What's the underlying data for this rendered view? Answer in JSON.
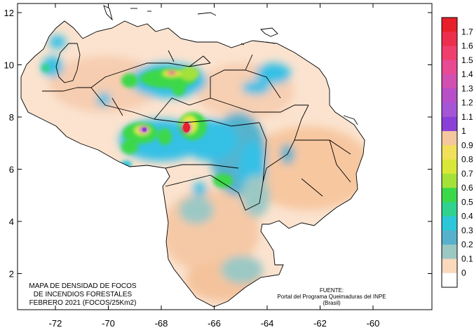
{
  "map": {
    "title_lines": [
      "MAPA DE DENSIDAD DE FOCOS",
      "DE INCENDIOS FORESTALES",
      "FEBRERO 2021 (FOCOS/25Km2)"
    ],
    "source_lines": [
      "FUENTE:",
      "Portal del Programa Queimaduras del INPE",
      "(Brasil)"
    ],
    "y_ticks": [
      "12",
      "10",
      "8",
      "6",
      "4",
      "2"
    ],
    "x_ticks": [
      "-72",
      "-70",
      "-68",
      "-66",
      "-64",
      "-62",
      "-60"
    ],
    "colorbar": {
      "labels": [
        "1.7",
        "1.6",
        "1.5",
        "1.4",
        "1.3",
        "1.2",
        "1.1",
        "1",
        "0.9",
        "0.8",
        "0.7",
        "0.6",
        "0.5",
        "0.4",
        "0.3",
        "0.2",
        "0.1",
        "0"
      ],
      "colors": [
        "#e8202a",
        "#ec2f4c",
        "#ef3f6e",
        "#e84a93",
        "#d24fb2",
        "#b64fc8",
        "#a456d6",
        "#8a3fd8",
        "#f4c79e",
        "#f2e05a",
        "#d8e838",
        "#a4e23a",
        "#3bd94a",
        "#2fd28e",
        "#2cc7d8",
        "#56b2cc",
        "#9cc8c4",
        "#fad9bd",
        "#ffffff"
      ]
    },
    "palette": {
      "peach": "#f9cfae",
      "light_peach": "#fbe3cf",
      "cyan": "#36c0e6",
      "teal": "#6fc3c0",
      "green": "#3ed84a",
      "yellow": "#e8ea3c",
      "magenta": "#c24bd0",
      "red": "#e8202a",
      "border": "#000000"
    },
    "map_data": {
      "region": "Venezuela",
      "lon_range": [
        -73.7,
        -59.2
      ],
      "lat_range": [
        0.5,
        12.6
      ],
      "hotspots": [
        {
          "lon": -67.2,
          "lat": 7.5,
          "density": 1.7
        },
        {
          "lon": -69.1,
          "lat": 7.4,
          "density": 1.1
        },
        {
          "lon": -67.8,
          "lat": 9.7,
          "density": 1.0
        },
        {
          "lon": -69.8,
          "lat": 9.4,
          "density": 0.5
        },
        {
          "lon": -66.5,
          "lat": 9.5,
          "density": 0.4
        },
        {
          "lon": -65.3,
          "lat": 6.0,
          "density": 0.3
        },
        {
          "lon": -63.3,
          "lat": 9.9,
          "density": 0.3
        },
        {
          "lon": -66.0,
          "lat": 5.5,
          "density": 0.5
        },
        {
          "lon": -72.6,
          "lat": 10.0,
          "density": 0.4
        }
      ]
    }
  }
}
